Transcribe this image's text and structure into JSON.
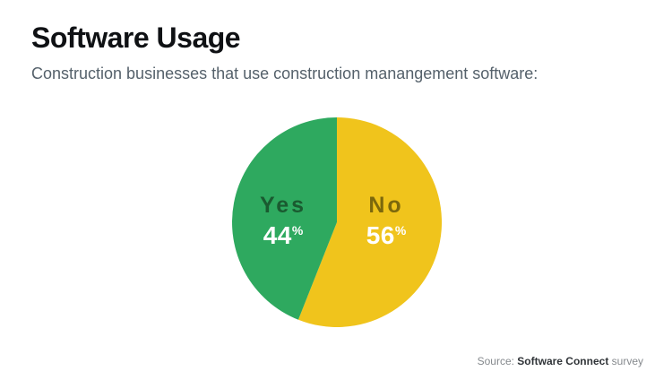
{
  "header": {
    "title": "Software Usage",
    "subtitle": "Construction businesses that use construction manangement software:"
  },
  "chart_data": {
    "type": "pie",
    "title": "Software Usage",
    "subtitle": "Construction businesses that use construction manangement software:",
    "unit": "%",
    "start_angle": "12-oclock",
    "direction": "clockwise",
    "legend": "none",
    "slices": [
      {
        "label": "No",
        "value": 56,
        "color": "#F0C41C",
        "label_color": "#7C680C",
        "value_color": "#FFFFFF"
      },
      {
        "label": "Yes",
        "value": 44,
        "color": "#2EA95F",
        "label_color": "#1A5A30",
        "value_color": "#FFFFFF"
      }
    ]
  },
  "source": {
    "prefix": "Source:",
    "name": "Software Connect",
    "suffix": "survey"
  }
}
